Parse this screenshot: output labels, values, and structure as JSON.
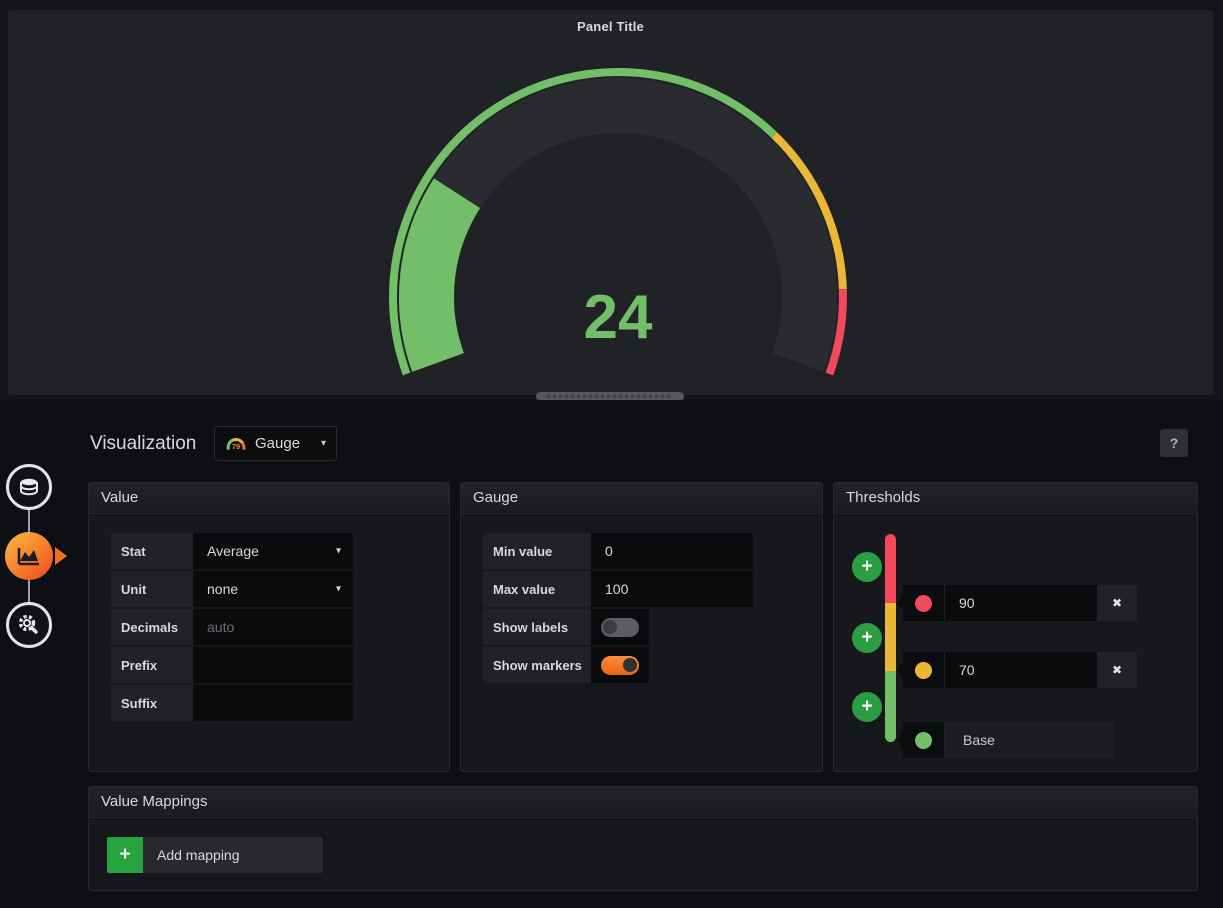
{
  "panel": {
    "title": "Panel Title",
    "gauge": {
      "value": 24,
      "display": "24",
      "min": 0,
      "max": 100,
      "base_color": "#73bf69",
      "thresholds": [
        {
          "value": 70,
          "color": "#eab839"
        },
        {
          "value": 90,
          "color": "#f2495c"
        }
      ],
      "value_color": "#73bf69",
      "background_arc_color": "#2a2b2f"
    }
  },
  "sidebar": {
    "items": [
      {
        "name": "queries",
        "icon": "database-icon",
        "active": false
      },
      {
        "name": "visualization",
        "icon": "chart-icon",
        "active": true
      },
      {
        "name": "general",
        "icon": "gear-icon",
        "active": false
      }
    ]
  },
  "editor": {
    "title": "Visualization",
    "viz_picker": {
      "label": "Gauge",
      "icon_value": "79"
    },
    "help_label": "?",
    "value_section": {
      "title": "Value",
      "stat": {
        "label": "Stat",
        "value": "Average"
      },
      "unit": {
        "label": "Unit",
        "value": "none"
      },
      "decimals": {
        "label": "Decimals",
        "placeholder": "auto",
        "value": ""
      },
      "prefix": {
        "label": "Prefix",
        "value": ""
      },
      "suffix": {
        "label": "Suffix",
        "value": ""
      }
    },
    "gauge_section": {
      "title": "Gauge",
      "min": {
        "label": "Min value",
        "value": "0"
      },
      "max": {
        "label": "Max value",
        "value": "100"
      },
      "show_labels": {
        "label": "Show labels",
        "enabled": false
      },
      "show_markers": {
        "label": "Show markers",
        "enabled": true
      }
    },
    "thresholds_section": {
      "title": "Thresholds",
      "rows": [
        {
          "value": "90",
          "color": "#f2495c",
          "removable": true
        },
        {
          "value": "70",
          "color": "#eab839",
          "removable": true
        },
        {
          "value": "Base",
          "color": "#73bf69",
          "removable": false
        }
      ],
      "bar_colors": [
        "#f2495c",
        "#eab839",
        "#73bf69"
      ]
    },
    "mappings_section": {
      "title": "Value Mappings",
      "add_label": "Add mapping"
    }
  },
  "icons": {
    "close": "✖",
    "caret": "▾",
    "plus": "+"
  }
}
